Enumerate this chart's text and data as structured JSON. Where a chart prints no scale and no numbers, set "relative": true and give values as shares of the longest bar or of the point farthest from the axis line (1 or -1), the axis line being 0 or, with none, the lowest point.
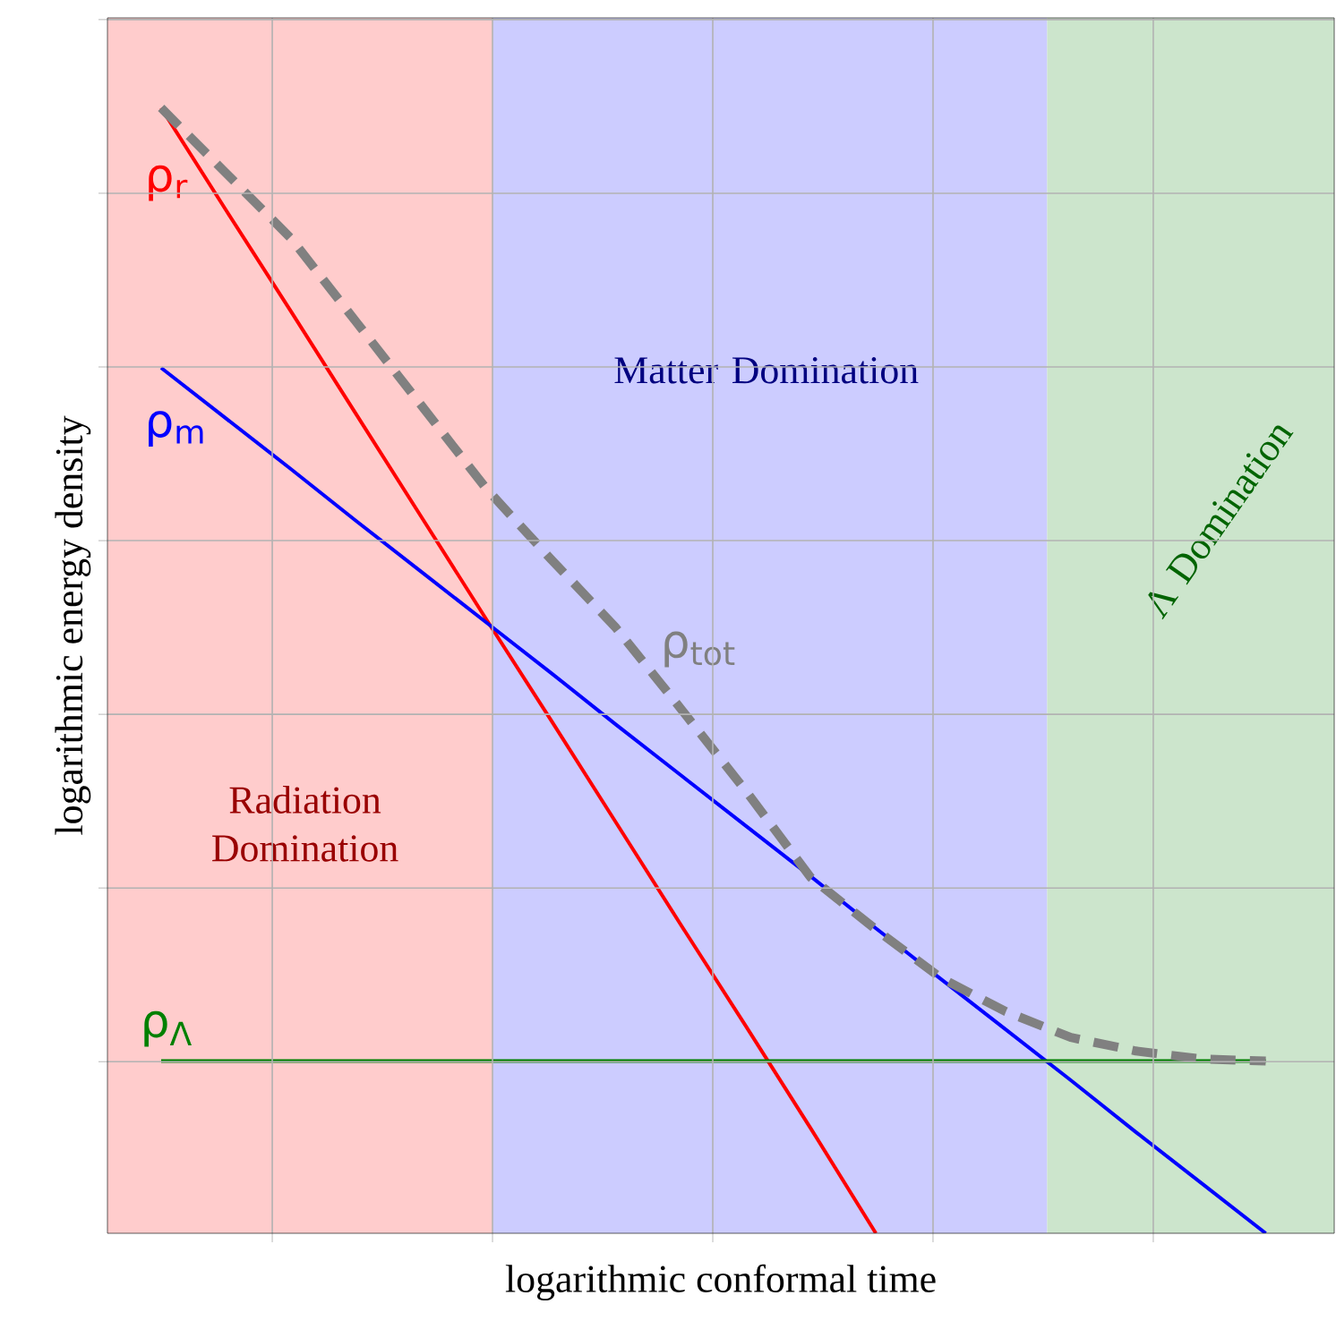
{
  "chart_data": {
    "type": "line",
    "relative": true,
    "xlabel": "logarithmic conformal time",
    "ylabel": "logarithmic energy density",
    "categories": [
      null,
      null,
      null,
      null,
      null,
      null,
      null,
      null,
      null,
      null,
      null,
      null,
      null,
      null,
      null,
      null,
      null,
      null
    ],
    "grid": true,
    "tick_labels": false,
    "annotations": [
      "Radiation Domination",
      "Matter Domination",
      "Λ Domination"
    ],
    "series": [
      {
        "name": "ρ$_{r}$",
        "color": "#ff0000",
        "values": [
          1.0,
          0.909,
          0.819,
          0.728,
          0.637,
          0.546,
          0.456,
          0.365,
          0.274,
          0.184,
          0.093,
          0.0,
          null,
          null,
          null,
          null,
          null,
          null
        ]
      },
      {
        "name": "ρ$_{m}$",
        "color": "#0000ff",
        "values": [
          0.769,
          0.724,
          0.679,
          0.633,
          0.588,
          0.543,
          0.498,
          0.452,
          0.407,
          0.362,
          0.317,
          0.271,
          0.226,
          0.181,
          0.136,
          0.09,
          0.045,
          0.0
        ]
      },
      {
        "name": "ρ$_{Λ}$",
        "color": "#008000",
        "values": [
          0.153,
          0.153,
          0.153,
          0.153,
          0.153,
          0.153,
          0.153,
          0.153,
          0.153,
          0.153,
          0.153,
          0.153,
          0.153,
          0.153,
          0.153,
          0.153,
          0.153,
          0.153
        ]
      },
      {
        "name": "ρ$_{tot}$",
        "color": "#808080",
        "line_style": "dashed",
        "values": [
          1.0,
          0.942,
          0.884,
          0.81,
          0.736,
          0.662,
          0.599,
          0.538,
          0.466,
          0.393,
          0.316,
          0.27,
          0.227,
          0.197,
          0.174,
          0.162,
          0.155,
          0.153
        ]
      }
    ]
  }
}
